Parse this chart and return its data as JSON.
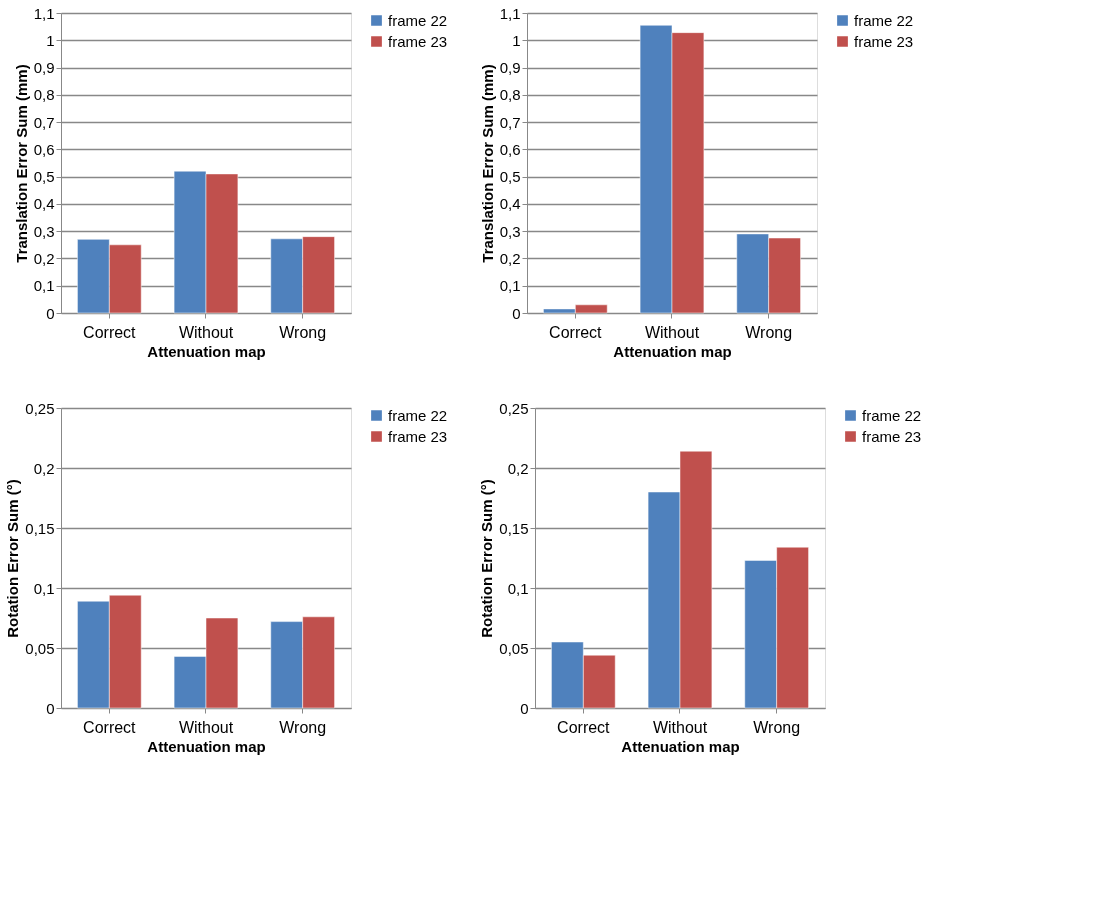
{
  "chart_data": [
    {
      "type": "bar",
      "xlabel": "Attenuation map",
      "ylabel": "Translation Error Sum (mm)",
      "categories": [
        "Correct",
        "Without",
        "Wrong"
      ],
      "series": [
        {
          "name": "frame 22",
          "color": "#4f81bd",
          "values": [
            0.27,
            0.52,
            0.272
          ]
        },
        {
          "name": "frame 23",
          "color": "#c0504d",
          "values": [
            0.25,
            0.51,
            0.28
          ]
        }
      ],
      "ylim": [
        0,
        1.1
      ],
      "yticks": [
        {
          "value": 0,
          "label": "0"
        },
        {
          "value": 0.1,
          "label": "0,1"
        },
        {
          "value": 0.2,
          "label": "0,2"
        },
        {
          "value": 0.3,
          "label": "0,3"
        },
        {
          "value": 0.4,
          "label": "0,4"
        },
        {
          "value": 0.5,
          "label": "0,5"
        },
        {
          "value": 0.6,
          "label": "0,6"
        },
        {
          "value": 0.7,
          "label": "0,7"
        },
        {
          "value": 0.8,
          "label": "0,8"
        },
        {
          "value": 0.9,
          "label": "0,9"
        },
        {
          "value": 1,
          "label": "1"
        },
        {
          "value": 1.1,
          "label": "1,1"
        }
      ],
      "grid": "y",
      "legend": "right"
    },
    {
      "type": "bar",
      "xlabel": "Attenuation map",
      "ylabel": "Translation Error Sum (mm)",
      "categories": [
        "Correct",
        "Without",
        "Wrong"
      ],
      "series": [
        {
          "name": "frame 22",
          "color": "#4f81bd",
          "values": [
            0.015,
            1.055,
            0.29
          ]
        },
        {
          "name": "frame 23",
          "color": "#c0504d",
          "values": [
            0.03,
            1.028,
            0.275
          ]
        }
      ],
      "ylim": [
        0,
        1.1
      ],
      "yticks": [
        {
          "value": 0,
          "label": "0"
        },
        {
          "value": 0.1,
          "label": "0,1"
        },
        {
          "value": 0.2,
          "label": "0,2"
        },
        {
          "value": 0.3,
          "label": "0,3"
        },
        {
          "value": 0.4,
          "label": "0,4"
        },
        {
          "value": 0.5,
          "label": "0,5"
        },
        {
          "value": 0.6,
          "label": "0,6"
        },
        {
          "value": 0.7,
          "label": "0,7"
        },
        {
          "value": 0.8,
          "label": "0,8"
        },
        {
          "value": 0.9,
          "label": "0,9"
        },
        {
          "value": 1,
          "label": "1"
        },
        {
          "value": 1.1,
          "label": "1,1"
        }
      ],
      "grid": "y",
      "legend": "right"
    },
    {
      "type": "bar",
      "xlabel": "Attenuation map",
      "ylabel": "Rotation Error Sum (°)",
      "categories": [
        "Correct",
        "Without",
        "Wrong"
      ],
      "series": [
        {
          "name": "frame 22",
          "color": "#4f81bd",
          "values": [
            0.089,
            0.043,
            0.072
          ]
        },
        {
          "name": "frame 23",
          "color": "#c0504d",
          "values": [
            0.094,
            0.075,
            0.076
          ]
        }
      ],
      "ylim": [
        0,
        0.25
      ],
      "yticks": [
        {
          "value": 0,
          "label": "0"
        },
        {
          "value": 0.05,
          "label": "0,05"
        },
        {
          "value": 0.1,
          "label": "0,1"
        },
        {
          "value": 0.15,
          "label": "0,15"
        },
        {
          "value": 0.2,
          "label": "0,2"
        },
        {
          "value": 0.25,
          "label": "0,25"
        }
      ],
      "grid": "y",
      "legend": "right"
    },
    {
      "type": "bar",
      "xlabel": "Attenuation map",
      "ylabel": "Rotation Error Sum (°)",
      "categories": [
        "Correct",
        "Without",
        "Wrong"
      ],
      "series": [
        {
          "name": "frame 22",
          "color": "#4f81bd",
          "values": [
            0.055,
            0.18,
            0.123
          ]
        },
        {
          "name": "frame 23",
          "color": "#c0504d",
          "values": [
            0.044,
            0.214,
            0.134
          ]
        }
      ],
      "ylim": [
        0,
        0.25
      ],
      "yticks": [
        {
          "value": 0,
          "label": "0"
        },
        {
          "value": 0.05,
          "label": "0,05"
        },
        {
          "value": 0.1,
          "label": "0,1"
        },
        {
          "value": 0.15,
          "label": "0,15"
        },
        {
          "value": 0.2,
          "label": "0,2"
        },
        {
          "value": 0.25,
          "label": "0,25"
        }
      ],
      "grid": "y",
      "legend": "right"
    }
  ]
}
